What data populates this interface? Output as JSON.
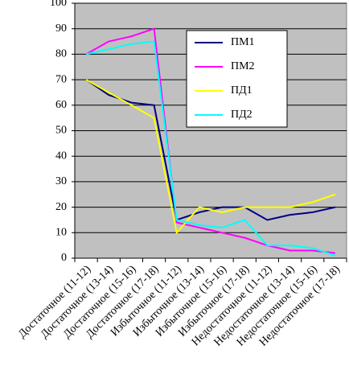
{
  "chart_data": {
    "type": "line",
    "categories": [
      "Достаточное (11-12)",
      "Достаточное (13-14)",
      "Достаточное (15-16)",
      "Достаточное (17-18)",
      "Избыточное (11-12)",
      "Избыточное (13-14)",
      "Избыточное (15-16)",
      "Избыточное (17-18)",
      "Недостаточное (11-12)",
      "Недостаточное (13-14)",
      "Недостаточное (15-16)",
      "Недостаточное (17-18)"
    ],
    "series": [
      {
        "name": "ПМ1",
        "color": "#000080",
        "values": [
          70,
          64,
          61,
          60,
          15,
          18,
          20,
          20,
          15,
          17,
          18,
          20
        ]
      },
      {
        "name": "ПМ2",
        "color": "#ff00ff",
        "values": [
          80,
          85,
          87,
          90,
          14,
          12,
          10,
          8,
          5,
          3,
          3,
          2
        ]
      },
      {
        "name": "ПД1",
        "color": "#ffff00",
        "values": [
          70,
          65,
          60,
          55,
          10,
          20,
          18,
          20,
          20,
          20,
          22,
          25
        ]
      },
      {
        "name": "ПД2",
        "color": "#00ffff",
        "values": [
          80,
          82,
          84,
          85,
          15,
          13,
          12,
          15,
          5,
          5,
          4,
          1
        ]
      }
    ],
    "ylim": [
      0,
      100
    ],
    "yticks": [
      0,
      10,
      20,
      30,
      40,
      50,
      60,
      70,
      80,
      90,
      100
    ],
    "grid": true,
    "legend": "upper right"
  }
}
